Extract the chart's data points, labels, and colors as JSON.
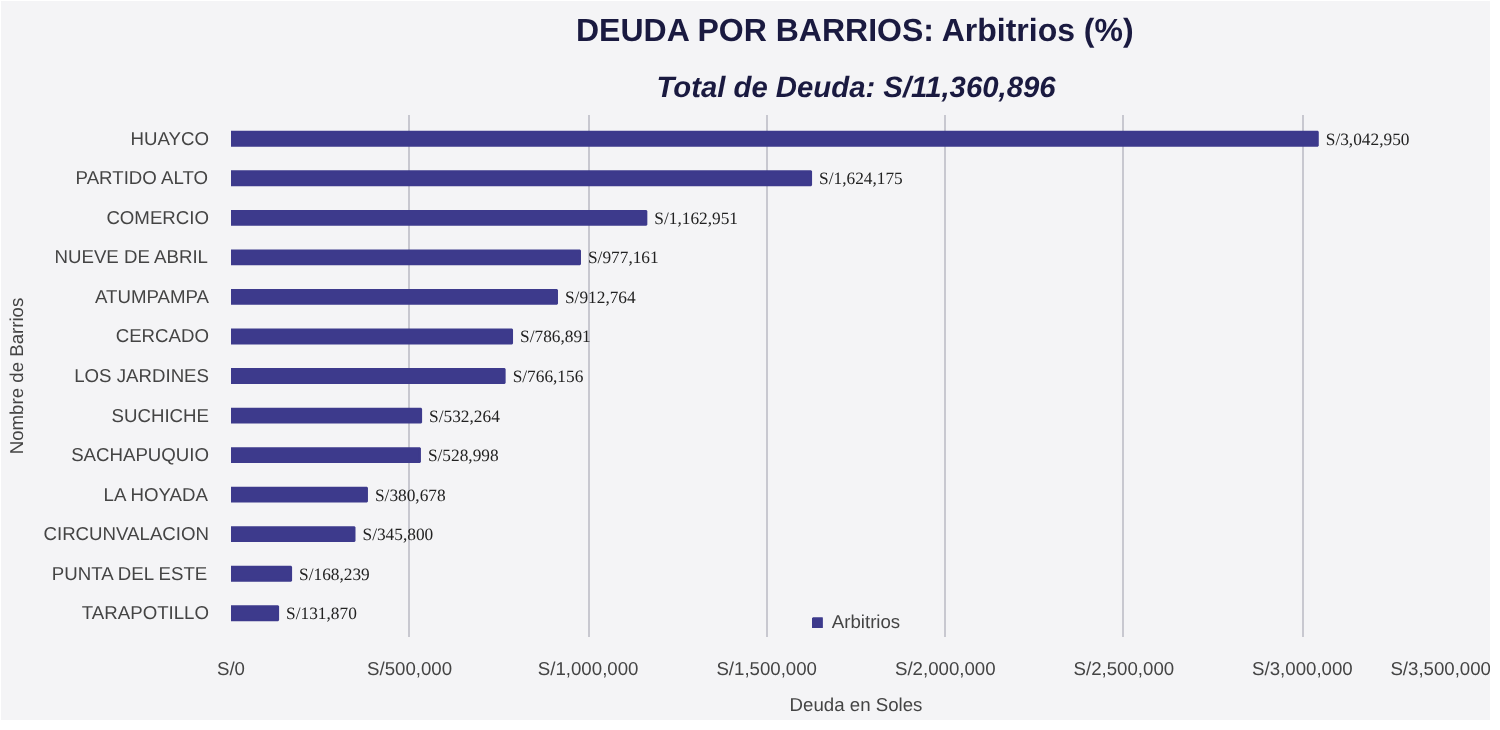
{
  "chart_data": {
    "type": "bar",
    "orientation": "horizontal",
    "title": "DEUDA POR BARRIOS: Arbitrios (%)",
    "subtitle": "Total de Deuda: S/11,360,896",
    "xlabel": "Deuda en Soles",
    "ylabel": "Nombre de Barrios",
    "categories": [
      "HUAYCO",
      "PARTIDO ALTO",
      "COMERCIO",
      "NUEVE DE ABRIL",
      "ATUMPAMPA",
      "CERCADO",
      "LOS JARDINES",
      "SUCHICHE",
      "SACHAPUQUIO",
      "LA HOYADA",
      "CIRCUNVALACION",
      "PUNTA DEL ESTE",
      "TARAPOTILLO"
    ],
    "series": [
      {
        "name": "Arbitrios",
        "color": "#3d3a8c",
        "values": [
          3042950,
          1624175,
          1162951,
          977161,
          912764,
          786891,
          766156,
          532264,
          528998,
          380678,
          345800,
          168239,
          131870
        ],
        "value_labels": [
          "S/3,042,950",
          "S/1,624,175",
          "S/1,162,951",
          "S/977,161",
          "S/912,764",
          "S/786,891",
          "S/766,156",
          "S/532,264",
          "S/528,998",
          "S/380,678",
          "S/345,800",
          "S/168,239",
          "S/131,870"
        ]
      }
    ],
    "xlim": [
      0,
      3500000
    ],
    "xticks": [
      {
        "value": 0,
        "label": "S/0"
      },
      {
        "value": 500000,
        "label": "S/500,000"
      },
      {
        "value": 1000000,
        "label": "S/1,000,000"
      },
      {
        "value": 1500000,
        "label": "S/1,500,000"
      },
      {
        "value": 2000000,
        "label": "S/2,000,000"
      },
      {
        "value": 2500000,
        "label": "S/2,500,000"
      },
      {
        "value": 3000000,
        "label": "S/3,000,000"
      },
      {
        "value": 3500000,
        "label": "S/3,500,000"
      }
    ],
    "grid": "x",
    "legend": "bottom"
  }
}
